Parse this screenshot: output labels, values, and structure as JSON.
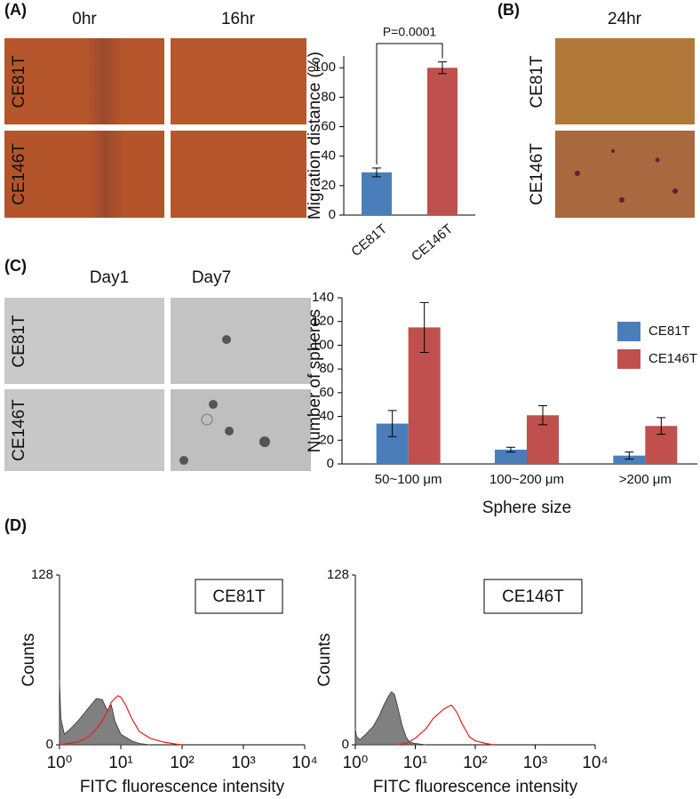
{
  "panels": {
    "A": {
      "label": "(A)",
      "columns": [
        "0hr",
        "16hr"
      ],
      "rows": [
        "CE81T",
        "CE146T"
      ]
    },
    "B": {
      "label": "(B)",
      "columns": [
        "24hr"
      ],
      "rows": [
        "CE81T",
        "CE146T"
      ]
    },
    "C": {
      "label": "(C)",
      "columns": [
        "Day1",
        "Day7"
      ],
      "rows": [
        "CE81T",
        "CE146T"
      ]
    },
    "D": {
      "label": "(D)"
    }
  },
  "chart_data": [
    {
      "type": "bar",
      "categories": [
        "CE81T",
        "CE146T"
      ],
      "values": [
        29,
        100
      ],
      "errors": [
        3,
        4
      ],
      "colors": [
        "#4a7ebb",
        "#c0504d"
      ],
      "ylabel": "Migration distance (%)",
      "ylim": [
        0,
        108
      ],
      "yticks": [
        0,
        20,
        40,
        60,
        80,
        100
      ],
      "annotation": "P=0.0001"
    },
    {
      "type": "bar",
      "categories": [
        "50~100 μm",
        "100~200 μm",
        ">200 μm"
      ],
      "series": [
        {
          "name": "CE81T",
          "color": "#4a7ebb",
          "values": [
            34,
            12,
            7
          ],
          "errors": [
            11,
            2,
            3
          ]
        },
        {
          "name": "CE146T",
          "color": "#c0504d",
          "values": [
            115,
            41,
            32
          ],
          "errors": [
            21,
            8,
            7
          ]
        }
      ],
      "xlabel": "Sphere size",
      "ylabel": "Number of spheres",
      "ylim": [
        0,
        140
      ],
      "yticks": [
        0,
        20,
        40,
        60,
        80,
        100,
        120,
        140
      ]
    },
    {
      "type": "line",
      "log_x": true,
      "legend_label": "CE81T",
      "xlabel": "FITC fluorescence intensity",
      "ylabel": "Counts",
      "xlim": [
        1,
        10000
      ],
      "xticks": [
        {
          "value": 1,
          "label": "10⁰"
        },
        {
          "value": 10,
          "label": "10¹"
        },
        {
          "value": 100,
          "label": "10²"
        },
        {
          "value": 1000,
          "label": "10³"
        },
        {
          "value": 10000,
          "label": "10⁴"
        }
      ],
      "ylim": [
        0,
        128
      ],
      "yticks": [
        0,
        128
      ],
      "series": [
        {
          "color": "#808080",
          "fill": true,
          "x": [
            1,
            1.05,
            1.2,
            1.5,
            2,
            3,
            4,
            5,
            6,
            7,
            8,
            10,
            15,
            20,
            30
          ],
          "values": [
            49,
            20,
            8,
            12,
            18,
            28,
            35,
            34,
            26,
            30,
            18,
            8,
            3,
            1,
            0
          ]
        },
        {
          "color": "#e0201b",
          "fill": false,
          "x": [
            1,
            2,
            3,
            4,
            5,
            6,
            7,
            8,
            9,
            10,
            12,
            15,
            20,
            30,
            50,
            80,
            100
          ],
          "values": [
            0,
            2,
            6,
            12,
            18,
            25,
            32,
            35,
            37,
            36,
            30,
            20,
            10,
            5,
            2,
            0.5,
            0
          ]
        }
      ]
    },
    {
      "type": "line",
      "log_x": true,
      "legend_label": "CE146T",
      "xlabel": "FITC fluorescence intensity",
      "ylabel": "Counts",
      "xlim": [
        1,
        10000
      ],
      "xticks": [
        {
          "value": 1,
          "label": "10⁰"
        },
        {
          "value": 10,
          "label": "10¹"
        },
        {
          "value": 100,
          "label": "10²"
        },
        {
          "value": 1000,
          "label": "10³"
        },
        {
          "value": 10000,
          "label": "10⁴"
        }
      ],
      "ylim": [
        0,
        128
      ],
      "yticks": [
        0,
        128
      ],
      "series": [
        {
          "color": "#808080",
          "fill": true,
          "x": [
            1,
            1.05,
            1.2,
            1.5,
            2,
            2.5,
            3,
            3.5,
            4,
            4.5,
            5,
            6,
            7,
            8,
            10,
            15
          ],
          "values": [
            12,
            6,
            4,
            8,
            14,
            22,
            30,
            36,
            40,
            38,
            30,
            15,
            6,
            2,
            1,
            0
          ]
        },
        {
          "color": "#e0201b",
          "fill": false,
          "x": [
            5,
            7,
            10,
            15,
            20,
            30,
            40,
            50,
            60,
            80,
            100,
            150,
            200
          ],
          "values": [
            0,
            1,
            5,
            12,
            20,
            27,
            30,
            24,
            16,
            6,
            3,
            1,
            0
          ]
        }
      ]
    }
  ]
}
